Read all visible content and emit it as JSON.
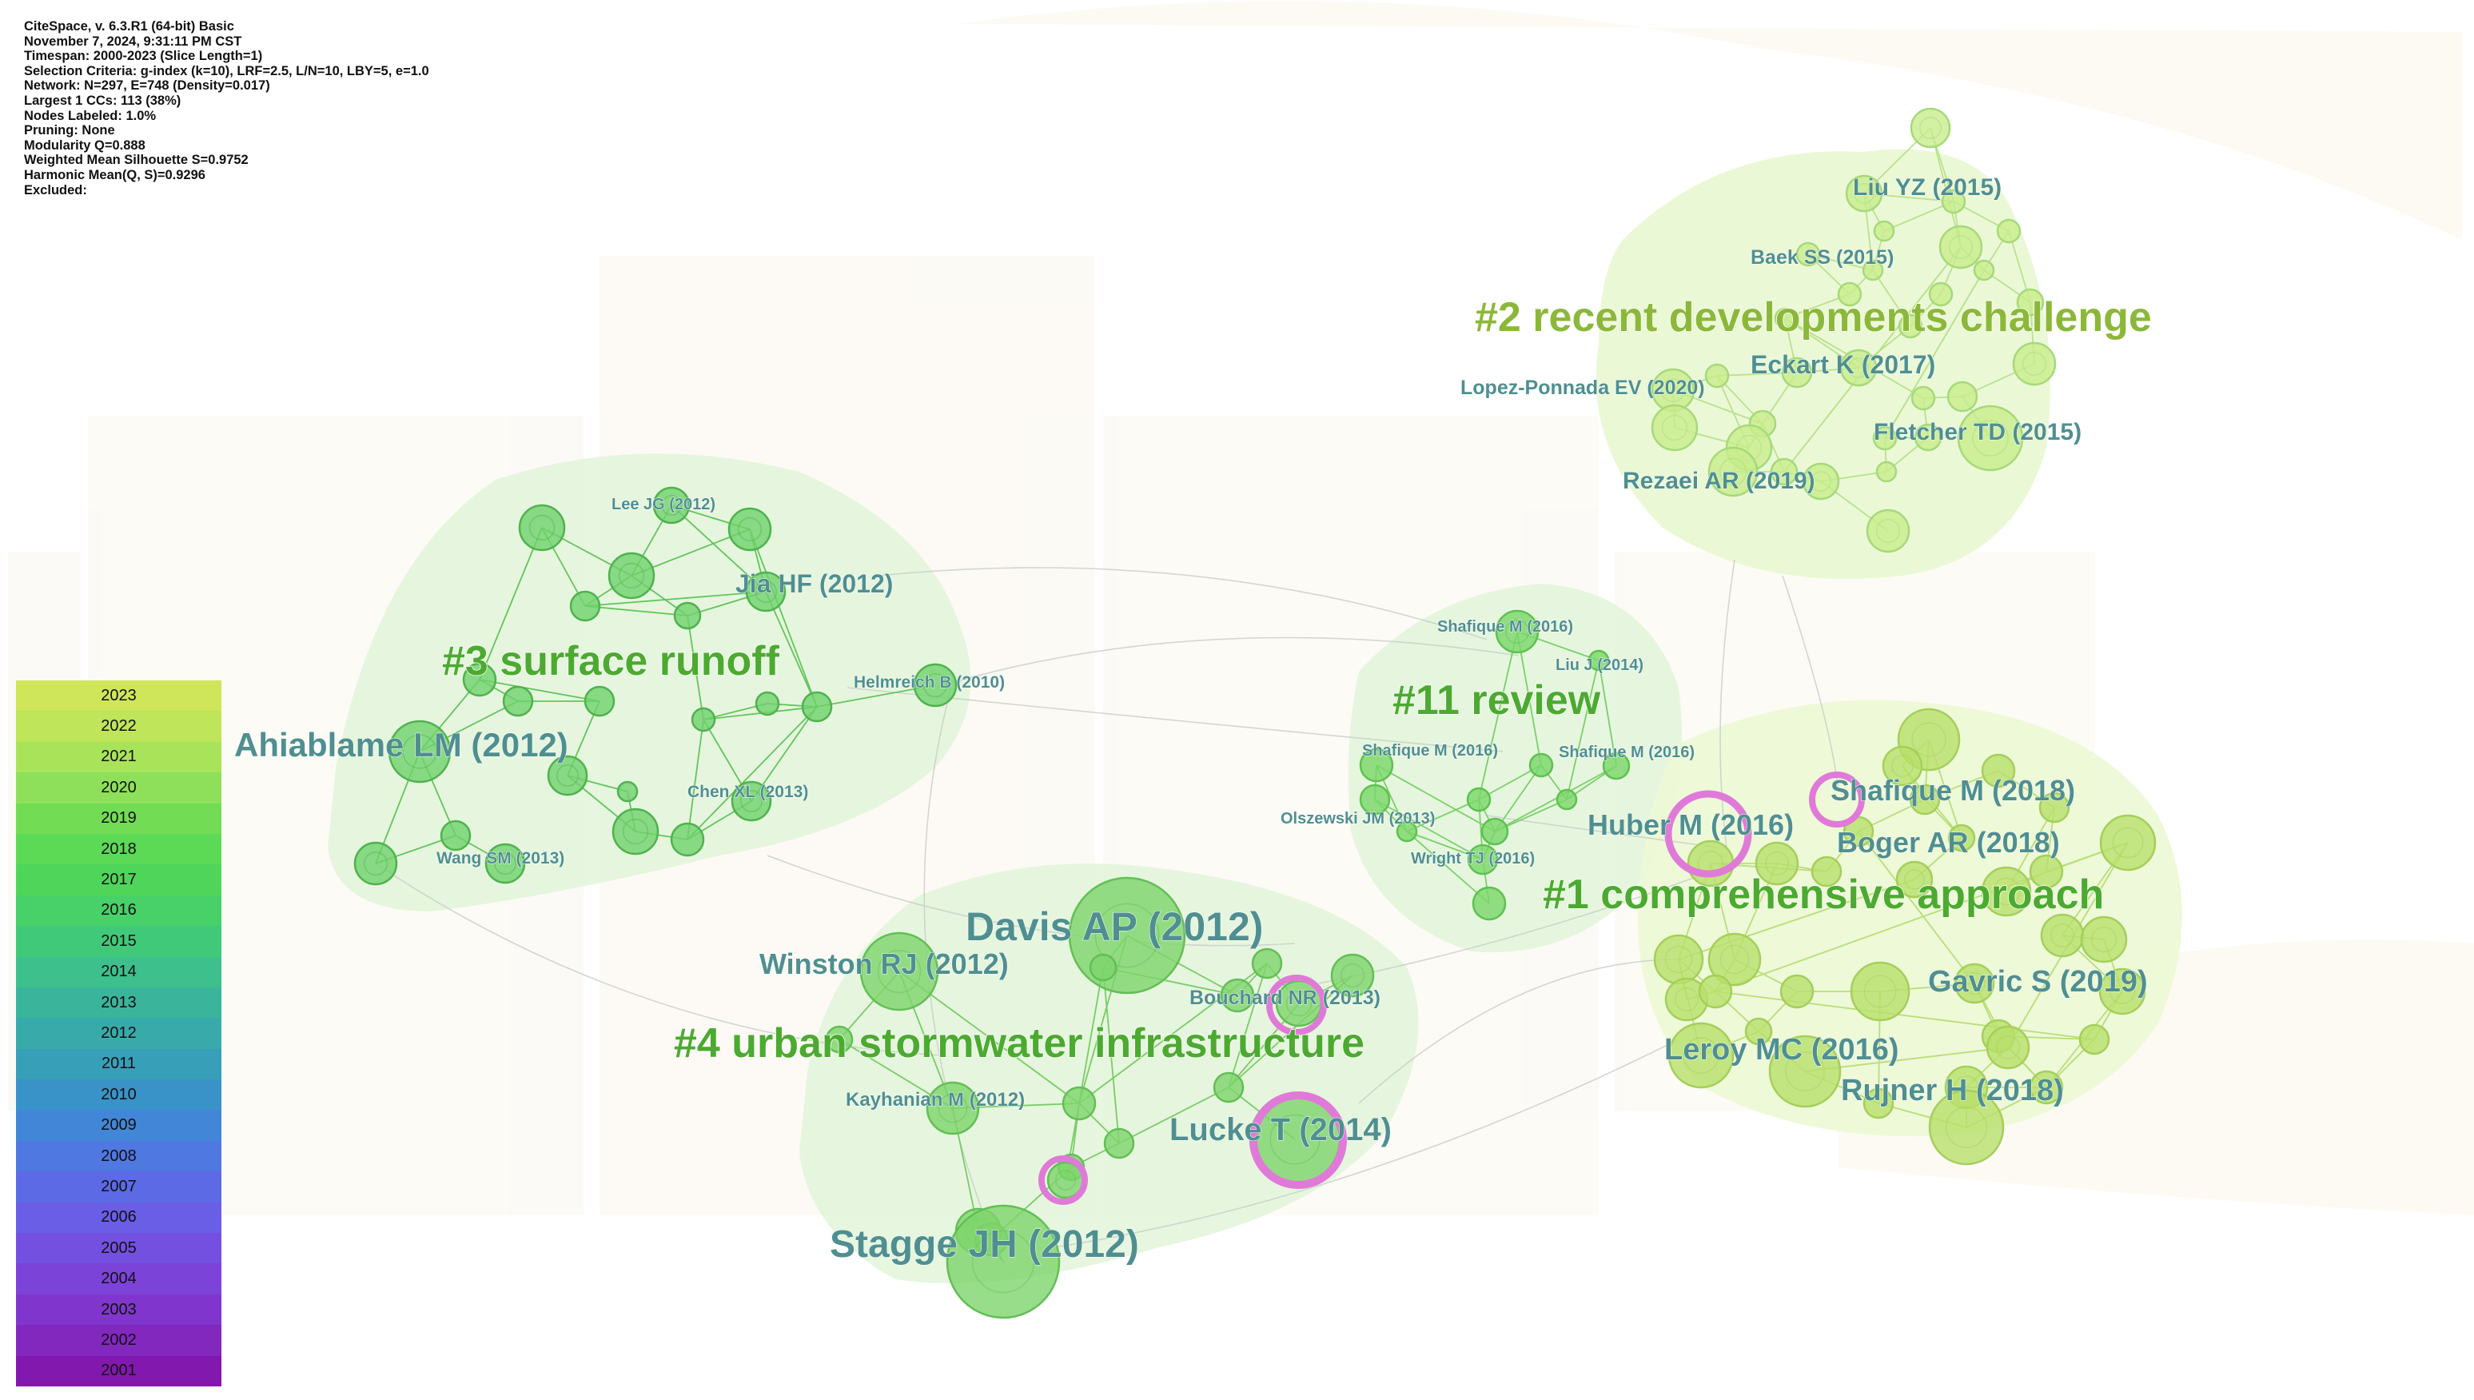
{
  "info_lines": [
    "CiteSpace, v. 6.3.R1 (64-bit) Basic",
    "November 7, 2024, 9:31:11 PM CST",
    "Timespan: 2000-2023 (Slice Length=1)",
    "Selection Criteria: g-index (k=10), LRF=2.5, L/N=10, LBY=5, e=1.0",
    "Network: N=297, E=748 (Density=0.017)",
    "Largest 1 CCs: 113 (38%)",
    "Nodes Labeled: 1.0%",
    "Pruning: None",
    "Modularity Q=0.888",
    "Weighted Mean Silhouette S=0.9752",
    "Harmonic Mean(Q, S)=0.9296",
    "Excluded:"
  ],
  "legend": [
    {
      "year": "2023",
      "color": "#cfe65a"
    },
    {
      "year": "2022",
      "color": "#bfe55a"
    },
    {
      "year": "2021",
      "color": "#a9e35a"
    },
    {
      "year": "2020",
      "color": "#8ee05a"
    },
    {
      "year": "2019",
      "color": "#72dc55"
    },
    {
      "year": "2018",
      "color": "#5cd955"
    },
    {
      "year": "2017",
      "color": "#4fd65a"
    },
    {
      "year": "2016",
      "color": "#47d168"
    },
    {
      "year": "2015",
      "color": "#41c97a"
    },
    {
      "year": "2014",
      "color": "#3dc08c"
    },
    {
      "year": "2013",
      "color": "#3ab59c"
    },
    {
      "year": "2012",
      "color": "#38aaaa"
    },
    {
      "year": "2011",
      "color": "#389fb8"
    },
    {
      "year": "2010",
      "color": "#3a93c8"
    },
    {
      "year": "2009",
      "color": "#4286d8"
    },
    {
      "year": "2008",
      "color": "#4f78e0"
    },
    {
      "year": "2007",
      "color": "#5c6ae6"
    },
    {
      "year": "2006",
      "color": "#6a5de6"
    },
    {
      "year": "2005",
      "color": "#7450e0"
    },
    {
      "year": "2004",
      "color": "#7c43d8"
    },
    {
      "year": "2003",
      "color": "#8036cc"
    },
    {
      "year": "2002",
      "color": "#8228be"
    },
    {
      "year": "2001",
      "color": "#8218ae"
    }
  ],
  "clusters": [
    {
      "key": "c2",
      "label": "#2 recent developments challenge"
    },
    {
      "key": "c3",
      "label": "#3 surface runoff"
    },
    {
      "key": "c11",
      "label": "#11 review"
    },
    {
      "key": "c1",
      "label": "#1 comprehensive approach"
    },
    {
      "key": "c4",
      "label": "#4 urban stormwater infrastructure"
    }
  ],
  "node_labels": [
    {
      "key": "liu_yz",
      "text": "Liu YZ (2015)",
      "size": "medium"
    },
    {
      "key": "baek_ss",
      "text": "Baek SS (2015)",
      "size": "small"
    },
    {
      "key": "eckart_k",
      "text": "Eckart K (2017)",
      "size": "medium"
    },
    {
      "key": "lopez",
      "text": "Lopez-Ponnada EV (2020)",
      "size": "small"
    },
    {
      "key": "fletcher",
      "text": "Fletcher TD (2015)",
      "size": "medium"
    },
    {
      "key": "rezaei",
      "text": "Rezaei AR (2019)",
      "size": "medium"
    },
    {
      "key": "lee_jg",
      "text": "Lee JG (2012)",
      "size": "tiny"
    },
    {
      "key": "jia_hf",
      "text": "Jia HF (2012)",
      "size": "medium"
    },
    {
      "key": "helmreich",
      "text": "Helmreich B (2010)",
      "size": "tiny"
    },
    {
      "key": "ahiablame",
      "text": "Ahiablame LM (2012)",
      "size": "large"
    },
    {
      "key": "chen_xl",
      "text": "Chen XL (2013)",
      "size": "tiny"
    },
    {
      "key": "wang_sm",
      "text": "Wang SM (2013)",
      "size": "tiny"
    },
    {
      "key": "shafique_m_2016a",
      "text": "Shafique M (2016)",
      "size": "tiny"
    },
    {
      "key": "liu_j",
      "text": "Liu J (2014)",
      "size": "tiny"
    },
    {
      "key": "shafique_m_2016b",
      "text": "Shafique M (2016)",
      "size": "tiny"
    },
    {
      "key": "shafique_m_2016c",
      "text": "Shafique M (2016)",
      "size": "tiny"
    },
    {
      "key": "olszewski",
      "text": "Olszewski JM (2013)",
      "size": "tiny"
    },
    {
      "key": "wright_tj",
      "text": "Wright TJ (2016)",
      "size": "tiny"
    },
    {
      "key": "huber_m",
      "text": "Huber M (2016)",
      "size": "medium"
    },
    {
      "key": "shafique_m_2018",
      "text": "Shafique M (2018)",
      "size": "medium"
    },
    {
      "key": "boger_ar",
      "text": "Boger AR (2018)",
      "size": "medium"
    },
    {
      "key": "gavric_s",
      "text": "Gavric S (2019)",
      "size": "medium"
    },
    {
      "key": "leroy_mc",
      "text": "Leroy MC (2016)",
      "size": "medium"
    },
    {
      "key": "rujner_h",
      "text": "Rujner H (2018)",
      "size": "medium"
    },
    {
      "key": "davis_ap",
      "text": "Davis AP (2012)",
      "size": "large"
    },
    {
      "key": "winston_rj",
      "text": "Winston RJ (2012)",
      "size": "medium"
    },
    {
      "key": "bouchard_nr",
      "text": "Bouchard NR (2013)",
      "size": "small"
    },
    {
      "key": "kayhanian_m",
      "text": "Kayhanian M (2012)",
      "size": "small"
    },
    {
      "key": "lucke_t",
      "text": "Lucke T (2014)",
      "size": "medium"
    },
    {
      "key": "stagge_jh",
      "text": "Stagge JH (2012)",
      "size": "large"
    }
  ],
  "colors": {
    "cluster_label": "#4caa30",
    "cluster_label_c2": "#8cb83a",
    "node_label": "#4f8f90",
    "burst_ring": "#e07ad8"
  }
}
